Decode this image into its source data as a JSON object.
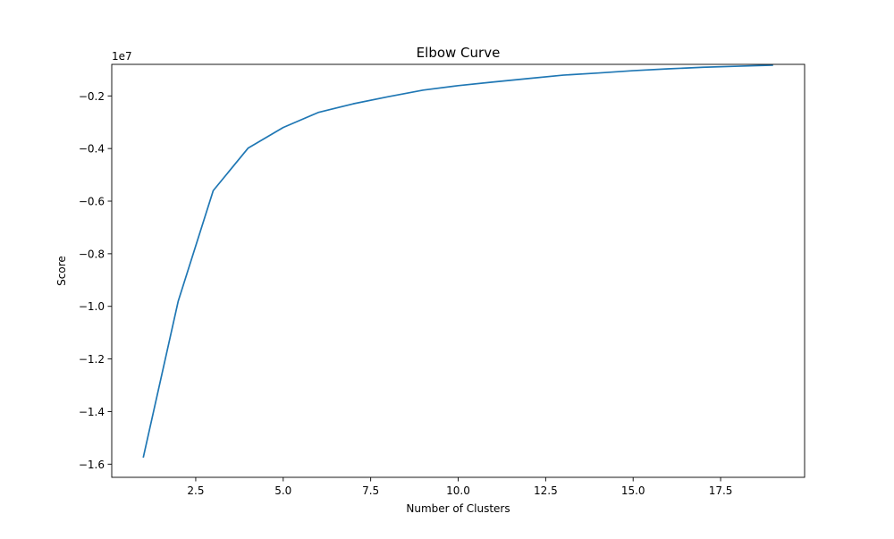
{
  "chart_data": {
    "type": "line",
    "title": "Elbow Curve",
    "xlabel": "Number of Clusters",
    "ylabel": "Score",
    "y_offset_label": "1e7",
    "x_ticks": [
      "2.5",
      "5.0",
      "7.5",
      "10.0",
      "12.5",
      "15.0",
      "17.5"
    ],
    "y_ticks": [
      "−0.2",
      "−0.4",
      "−0.6",
      "−0.8",
      "−1.0",
      "−1.2",
      "−1.4",
      "−1.6"
    ],
    "xlim": [
      0.1,
      19.9
    ],
    "ylim": [
      -1.65,
      -0.08
    ],
    "grid": false,
    "legend": "none",
    "series": [
      {
        "color": "#1f77b4",
        "x": [
          1,
          2,
          3,
          4,
          5,
          6,
          7,
          8,
          9,
          10,
          11,
          12,
          13,
          14,
          15,
          16,
          17,
          18,
          19
        ],
        "y": [
          -1.575,
          -0.98,
          -0.56,
          -0.398,
          -0.32,
          -0.263,
          -0.23,
          -0.203,
          -0.178,
          -0.161,
          -0.147,
          -0.134,
          -0.121,
          -0.113,
          -0.104,
          -0.097,
          -0.091,
          -0.087,
          -0.083
        ]
      }
    ]
  }
}
